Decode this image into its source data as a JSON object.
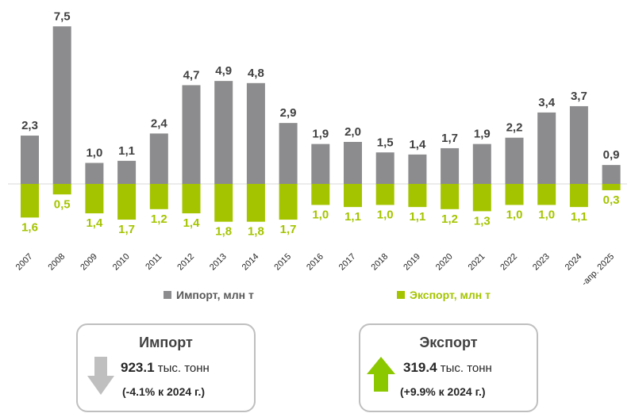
{
  "chart_data": {
    "type": "bar",
    "categories": [
      "2007",
      "2008",
      "2009",
      "2010",
      "2011",
      "2012",
      "2013",
      "2014",
      "2015",
      "2016",
      "2017",
      "2018",
      "2019",
      "2020",
      "2021",
      "2022",
      "2023",
      "2024",
      "янв.-апр. 2025"
    ],
    "series": [
      {
        "name": "Импорт, млн т",
        "color": "#8c8c8e",
        "values": [
          2.3,
          7.5,
          1.0,
          1.1,
          2.4,
          4.7,
          4.9,
          4.8,
          2.9,
          1.9,
          2.0,
          1.5,
          1.4,
          1.7,
          1.9,
          2.2,
          3.4,
          3.7,
          0.9
        ],
        "labels": [
          "2,3",
          "7,5",
          "1,0",
          "1,1",
          "2,4",
          "4,7",
          "4,9",
          "4,8",
          "2,9",
          "1,9",
          "2,0",
          "1,5",
          "1,4",
          "1,7",
          "1,9",
          "2,2",
          "3,4",
          "3,7",
          "0,9"
        ]
      },
      {
        "name": "Экспорт, млн т",
        "color": "#a5c400",
        "values": [
          1.6,
          0.5,
          1.4,
          1.7,
          1.2,
          1.4,
          1.8,
          1.8,
          1.7,
          1.0,
          1.1,
          1.0,
          1.1,
          1.2,
          1.3,
          1.0,
          1.0,
          1.1,
          0.3
        ],
        "labels": [
          "1,6",
          "0,5",
          "1,4",
          "1,7",
          "1,2",
          "1,4",
          "1,8",
          "1,8",
          "1,7",
          "1,0",
          "1,1",
          "1,0",
          "1,1",
          "1,2",
          "1,3",
          "1,0",
          "1,0",
          "1,1",
          "0,3"
        ]
      }
    ],
    "legend": [
      "Импорт, млн т",
      "Экспорт, млн т"
    ],
    "legend_position": "bottom"
  },
  "summary": {
    "import": {
      "title": "Импорт",
      "value": "923.1",
      "unit": "тыс. тонн",
      "change": "(-4.1% к 2024 г.)",
      "direction": "down",
      "arrow_color": "#bfbfbf",
      "arrow_icon": "arrow-down-icon"
    },
    "export": {
      "title": "Экспорт",
      "value": "319.4",
      "unit": "тыс. тонн",
      "change": "(+9.9% к 2024 г.)",
      "direction": "up",
      "arrow_color": "#8cc800",
      "arrow_icon": "arrow-up-icon"
    }
  }
}
